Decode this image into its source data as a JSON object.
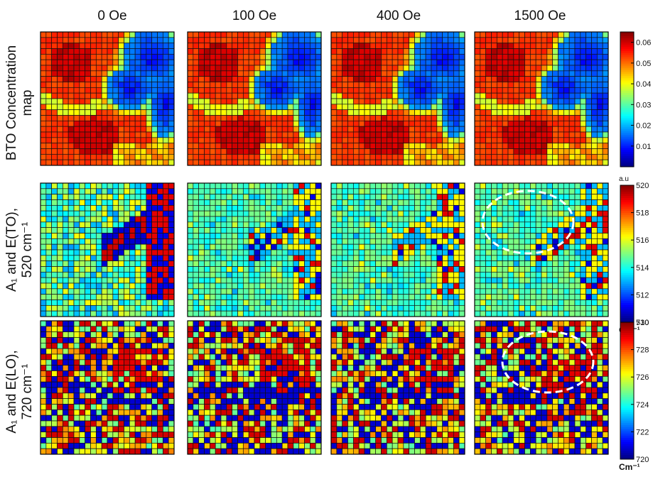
{
  "figure": {
    "columns": [
      "0 Oe",
      "100 Oe",
      "400 Oe",
      "1500 Oe"
    ],
    "rows": [
      {
        "line1": "BTO Concentration",
        "line2": "map"
      },
      {
        "line1": "A₁ and E(TO),",
        "line2": "520 cm⁻¹"
      },
      {
        "line1": "A₁ and E(LO),",
        "line2": "720 cm⁻¹"
      }
    ]
  },
  "chart_data": [
    {
      "type": "heatmap",
      "title": "BTO Concentration map",
      "colorbar": {
        "min": 0.0,
        "max": 0.065,
        "ticks": [
          "0.01",
          "0.02",
          "0.03",
          "0.04",
          "0.05",
          "0.06"
        ],
        "unit_label": ""
      },
      "grid": "24x24",
      "panels": [
        "0 Oe",
        "100 Oe",
        "400 Oe",
        "1500 Oe"
      ],
      "colormap": "jet"
    },
    {
      "type": "heatmap",
      "title": "A1 and E(TO), 520 cm-1",
      "colorbar": {
        "min": 510,
        "max": 520,
        "ticks": [
          "510",
          "512",
          "514",
          "516",
          "518",
          "520"
        ],
        "top_label": "a.u",
        "unit_label": "Cm⁻¹"
      },
      "grid": "24x24",
      "panels": [
        "0 Oe",
        "100 Oe",
        "400 Oe",
        "1500 Oe"
      ],
      "annotation": "dashed white ellipse on 1500 Oe panel",
      "colormap": "jet"
    },
    {
      "type": "heatmap",
      "title": "A1 and E(LO), 720 cm-1",
      "colorbar": {
        "min": 720,
        "max": 730,
        "ticks": [
          "720",
          "722",
          "724",
          "726",
          "728",
          "730"
        ],
        "unit_label": "Cm⁻¹"
      },
      "grid": "24x24",
      "panels": [
        "0 Oe",
        "100 Oe",
        "400 Oe",
        "1500 Oe"
      ],
      "annotation": "dashed white ellipse on 1500 Oe panel",
      "colormap": "jet"
    }
  ]
}
